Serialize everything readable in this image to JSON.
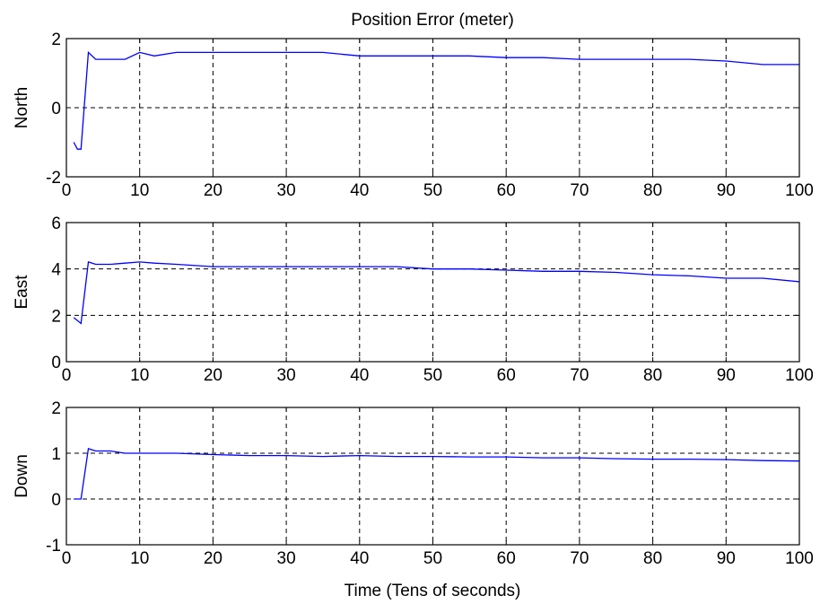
{
  "chart_data": {
    "type": "line",
    "title": "Position Error (meter)",
    "xlabel": "Time (Tens of seconds)",
    "xlim": [
      0,
      100
    ],
    "x_ticks": [
      0,
      10,
      20,
      30,
      40,
      50,
      60,
      70,
      80,
      90,
      100
    ],
    "grid": true,
    "line_color": "#0000ff",
    "subplots": [
      {
        "ylabel": "North",
        "ylim": [
          -2,
          2
        ],
        "y_ticks": [
          -2,
          0,
          2
        ],
        "x": [
          1,
          1.5,
          2,
          3,
          4,
          6,
          8,
          10,
          12,
          15,
          20,
          25,
          30,
          35,
          40,
          45,
          50,
          55,
          60,
          65,
          70,
          75,
          80,
          85,
          90,
          95,
          100
        ],
        "y": [
          -1.0,
          -1.2,
          -1.2,
          1.6,
          1.4,
          1.4,
          1.4,
          1.6,
          1.5,
          1.6,
          1.6,
          1.6,
          1.6,
          1.6,
          1.5,
          1.5,
          1.5,
          1.5,
          1.45,
          1.45,
          1.4,
          1.4,
          1.4,
          1.4,
          1.35,
          1.25,
          1.25
        ]
      },
      {
        "ylabel": "East",
        "ylim": [
          0,
          6
        ],
        "y_ticks": [
          0,
          2,
          4,
          6
        ],
        "x": [
          1,
          2,
          3,
          4,
          6,
          8,
          10,
          12,
          15,
          20,
          25,
          30,
          35,
          40,
          45,
          50,
          55,
          60,
          65,
          70,
          75,
          80,
          85,
          90,
          95,
          100
        ],
        "y": [
          1.9,
          1.65,
          4.3,
          4.2,
          4.2,
          4.25,
          4.3,
          4.25,
          4.2,
          4.1,
          4.1,
          4.1,
          4.1,
          4.1,
          4.1,
          4.0,
          4.0,
          3.95,
          3.9,
          3.9,
          3.85,
          3.75,
          3.7,
          3.6,
          3.6,
          3.45
        ]
      },
      {
        "ylabel": "Down",
        "ylim": [
          -1,
          2
        ],
        "y_ticks": [
          -1,
          0,
          1,
          2
        ],
        "x": [
          1,
          2,
          3,
          4,
          6,
          8,
          10,
          12,
          15,
          20,
          25,
          30,
          35,
          40,
          45,
          50,
          55,
          60,
          65,
          70,
          75,
          80,
          85,
          90,
          95,
          100
        ],
        "y": [
          0.0,
          0.0,
          1.1,
          1.05,
          1.05,
          1.0,
          1.0,
          1.0,
          1.0,
          0.97,
          0.95,
          0.95,
          0.93,
          0.95,
          0.93,
          0.93,
          0.92,
          0.92,
          0.9,
          0.9,
          0.88,
          0.87,
          0.87,
          0.86,
          0.84,
          0.83
        ]
      }
    ]
  }
}
